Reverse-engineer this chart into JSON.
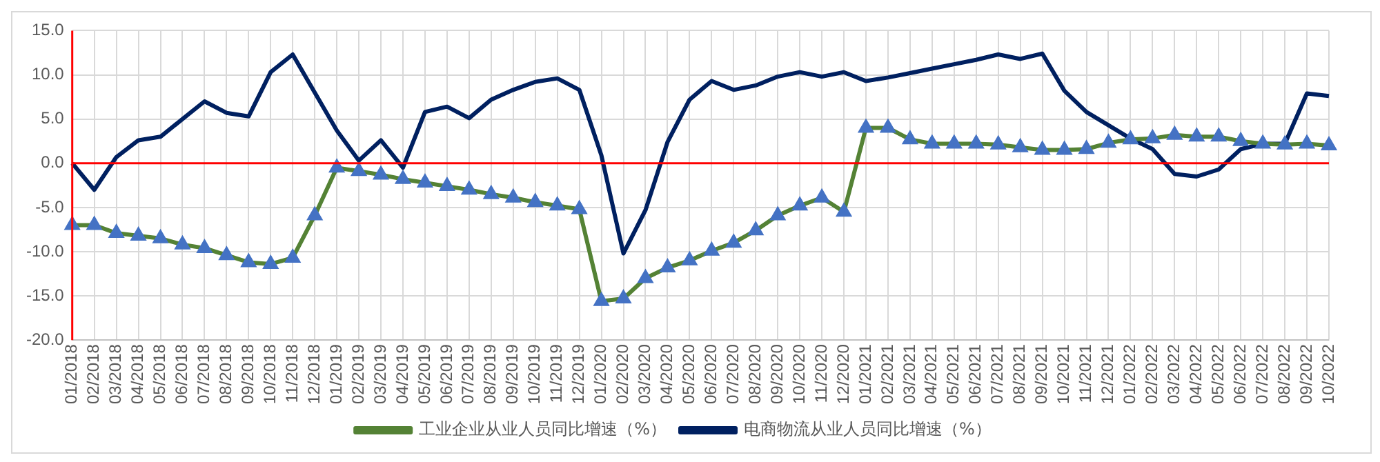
{
  "chart_data": {
    "type": "line",
    "categories": [
      "01/2018",
      "02/2018",
      "03/2018",
      "04/2018",
      "05/2018",
      "06/2018",
      "07/2018",
      "08/2018",
      "09/2018",
      "10/2018",
      "11/2018",
      "12/2018",
      "01/2019",
      "02/2019",
      "03/2019",
      "04/2019",
      "05/2019",
      "06/2019",
      "07/2019",
      "08/2019",
      "09/2019",
      "10/2019",
      "11/2019",
      "12/2019",
      "01/2020",
      "02/2020",
      "03/2020",
      "04/2020",
      "05/2020",
      "06/2020",
      "07/2020",
      "08/2020",
      "09/2020",
      "10/2020",
      "11/2020",
      "12/2020",
      "01/2021",
      "02/2021",
      "03/2021",
      "04/2021",
      "05/2021",
      "06/2021",
      "07/2021",
      "08/2021",
      "09/2021",
      "10/2021",
      "11/2021",
      "12/2021",
      "01/2022",
      "02/2022",
      "03/2022",
      "04/2022",
      "05/2022",
      "06/2022",
      "07/2022",
      "08/2022",
      "09/2022",
      "10/2022"
    ],
    "series": [
      {
        "name": "工业企业从业人员同比增速（%）",
        "color": "#548235",
        "marker": "triangle",
        "values": [
          -7.0,
          -7.0,
          -7.9,
          -8.2,
          -8.5,
          -9.2,
          -9.6,
          -10.4,
          -11.2,
          -11.4,
          -10.7,
          -5.9,
          -0.5,
          -0.9,
          -1.3,
          -1.8,
          -2.2,
          -2.6,
          -3.0,
          -3.5,
          -3.9,
          -4.4,
          -4.8,
          -5.2,
          -15.6,
          -15.3,
          -13.0,
          -11.8,
          -11.0,
          -9.9,
          -9.0,
          -7.6,
          -5.9,
          -4.8,
          -3.9,
          -5.5,
          4.0,
          4.0,
          2.7,
          2.2,
          2.2,
          2.2,
          2.1,
          1.8,
          1.5,
          1.5,
          1.6,
          2.3,
          2.7,
          2.8,
          3.2,
          3.0,
          3.0,
          2.5,
          2.2,
          2.1,
          2.2,
          2.0
        ]
      },
      {
        "name": "电商物流从业人员同比增速（%）",
        "color": "#002060",
        "marker": "none",
        "values": [
          0.0,
          -3.0,
          0.7,
          2.6,
          3.0,
          5.0,
          7.0,
          5.7,
          5.3,
          10.3,
          12.3,
          8.0,
          3.7,
          0.3,
          2.6,
          -0.5,
          5.8,
          6.4,
          5.1,
          7.2,
          8.3,
          9.2,
          9.6,
          8.3,
          0.9,
          -10.2,
          -5.3,
          2.4,
          7.2,
          9.3,
          8.3,
          8.8,
          9.8,
          10.3,
          9.8,
          10.3,
          9.3,
          9.7,
          10.2,
          10.7,
          11.2,
          11.7,
          12.3,
          11.8,
          12.4,
          8.2,
          5.8,
          4.3,
          2.8,
          1.6,
          -1.2,
          -1.5,
          -0.7,
          1.6,
          2.2,
          2.2,
          7.9,
          7.6
        ]
      }
    ],
    "ylim": [
      -20,
      15
    ],
    "yticks": [
      {
        "value": -20,
        "label": "-20.0"
      },
      {
        "value": -15,
        "label": "-15.0"
      },
      {
        "value": -10,
        "label": "-10.0"
      },
      {
        "value": -5,
        "label": "-5.0"
      },
      {
        "value": 0,
        "label": "0.0"
      },
      {
        "value": 5,
        "label": "5.0"
      },
      {
        "value": 10,
        "label": "10.0"
      },
      {
        "value": 15,
        "label": "15.0"
      }
    ],
    "ref_lines": [
      {
        "axis": "y",
        "value": 0,
        "label": null,
        "color": "#ff0000"
      }
    ],
    "grid": true,
    "legend": "bottom"
  }
}
